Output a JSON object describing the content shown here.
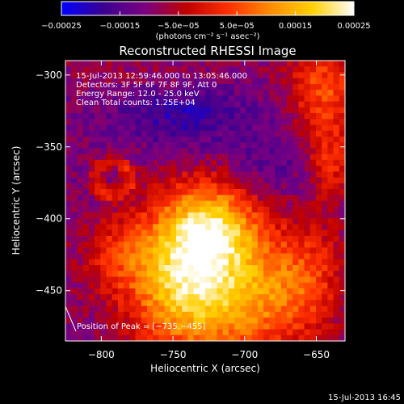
{
  "chart_data": {
    "type": "heatmap",
    "title": "Reconstructed RHESSI Image",
    "xlabel": "Heliocentric X (arcsec)",
    "ylabel": "Heliocentric Y (arcsec)",
    "xlim": [
      -825,
      -630
    ],
    "ylim": [
      -485,
      -290
    ],
    "x_ticks": [
      {
        "value": -800,
        "label": "−800"
      },
      {
        "value": -750,
        "label": "−750"
      },
      {
        "value": -700,
        "label": "−700"
      },
      {
        "value": -650,
        "label": "−650"
      }
    ],
    "y_ticks": [
      {
        "value": -300,
        "label": "−300"
      },
      {
        "value": -350,
        "label": "−350"
      },
      {
        "value": -400,
        "label": "−400"
      },
      {
        "value": -450,
        "label": "−450"
      }
    ],
    "colorbar": {
      "range": [
        -0.00025,
        0.00025
      ],
      "colormap": [
        "#0000ff",
        "#3b0090",
        "#7a0080",
        "#c00000",
        "#ff3000",
        "#ff8c00",
        "#ffd000",
        "#ffffff"
      ],
      "ticks": [
        {
          "value": -0.00025,
          "label": "−0.00025"
        },
        {
          "value": -0.00015,
          "label": "−0.00015"
        },
        {
          "value": -5e-05,
          "label": "−5.0e−05"
        },
        {
          "value": 5e-05,
          "label": "5.0e−05"
        },
        {
          "value": 0.00015,
          "label": "0.00015"
        },
        {
          "value": 0.00025,
          "label": "0.00025"
        }
      ],
      "unit_label": "(photons cm⁻² s⁻¹ asec⁻²)"
    },
    "annotations": [
      "15-Jul-2013 12:59:46.000 to 13:05:46.000",
      "Detectors: 3F 5F 6F 7F 8F 9F, Att 0",
      "Energy Range: 12.0 - 25.0 keV",
      "Clean     Total counts: 1.25E+04"
    ],
    "peak_label": "Position of Peak = [−735,−455]",
    "peak": [
      -735,
      -455
    ],
    "grid": false,
    "legend": "none"
  },
  "footer": {
    "timestamp": "15-Jul-2013 16:45"
  }
}
